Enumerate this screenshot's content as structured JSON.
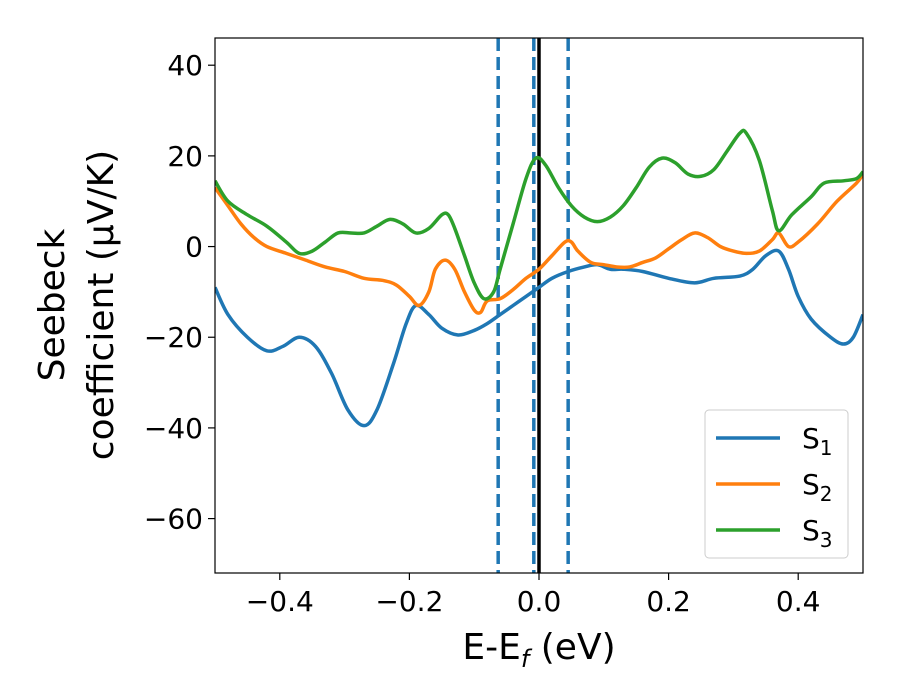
{
  "chart_data": {
    "type": "line",
    "xlabel": "E-E",
    "xlabel_sub": "f",
    "xlabel_suffix": " (eV)",
    "ylabel_line1": "Seebeck",
    "ylabel_line2": "coefficient  (μV/K)",
    "xlim": [
      -0.5,
      0.5
    ],
    "ylim": [
      -72,
      46
    ],
    "xticks": [
      -0.4,
      -0.2,
      0.0,
      0.2,
      0.4
    ],
    "xtick_labels": [
      "−0.4",
      "−0.2",
      "0.0",
      "0.2",
      "0.4"
    ],
    "yticks": [
      40,
      20,
      0,
      -20,
      -40,
      -60
    ],
    "ytick_labels": [
      "40",
      "20",
      "0",
      "−20",
      "−40",
      "−60"
    ],
    "grid": false,
    "legend_position": "bottom-right",
    "vlines_dashed": [
      -0.063,
      -0.008,
      0.045
    ],
    "vline_solid": 0.0,
    "colors": {
      "dashed": "#1f77b4",
      "solid": "#000000"
    },
    "series": [
      {
        "name": "S",
        "sub": "1",
        "color": "#1f77b4",
        "points": [
          [
            -0.5,
            -9
          ],
          [
            -0.48,
            -15
          ],
          [
            -0.45,
            -20
          ],
          [
            -0.42,
            -23
          ],
          [
            -0.395,
            -22
          ],
          [
            -0.37,
            -20
          ],
          [
            -0.345,
            -22
          ],
          [
            -0.32,
            -28
          ],
          [
            -0.295,
            -36
          ],
          [
            -0.27,
            -39.5
          ],
          [
            -0.25,
            -36
          ],
          [
            -0.225,
            -26
          ],
          [
            -0.205,
            -17
          ],
          [
            -0.19,
            -13
          ],
          [
            -0.17,
            -15
          ],
          [
            -0.15,
            -18
          ],
          [
            -0.125,
            -19.5
          ],
          [
            -0.1,
            -18.5
          ],
          [
            -0.08,
            -17
          ],
          [
            -0.06,
            -15
          ],
          [
            -0.04,
            -13
          ],
          [
            -0.02,
            -11
          ],
          [
            0.0,
            -9
          ],
          [
            0.02,
            -7
          ],
          [
            0.045,
            -5.5
          ],
          [
            0.07,
            -4.5
          ],
          [
            0.09,
            -4
          ],
          [
            0.11,
            -5
          ],
          [
            0.13,
            -5
          ],
          [
            0.16,
            -5.5
          ],
          [
            0.2,
            -7
          ],
          [
            0.24,
            -8
          ],
          [
            0.27,
            -7
          ],
          [
            0.31,
            -6.5
          ],
          [
            0.33,
            -5
          ],
          [
            0.35,
            -2
          ],
          [
            0.37,
            -1
          ],
          [
            0.385,
            -5
          ],
          [
            0.4,
            -11
          ],
          [
            0.42,
            -16
          ],
          [
            0.45,
            -20
          ],
          [
            0.47,
            -21.5
          ],
          [
            0.485,
            -20
          ],
          [
            0.5,
            -15
          ]
        ]
      },
      {
        "name": "S",
        "sub": "2",
        "color": "#ff7f0e",
        "points": [
          [
            -0.5,
            13
          ],
          [
            -0.48,
            9
          ],
          [
            -0.46,
            5
          ],
          [
            -0.44,
            2
          ],
          [
            -0.42,
            0
          ],
          [
            -0.39,
            -1.5
          ],
          [
            -0.36,
            -3
          ],
          [
            -0.33,
            -4.5
          ],
          [
            -0.3,
            -5.5
          ],
          [
            -0.27,
            -7
          ],
          [
            -0.24,
            -7.5
          ],
          [
            -0.22,
            -8.5
          ],
          [
            -0.2,
            -11
          ],
          [
            -0.185,
            -13
          ],
          [
            -0.17,
            -10
          ],
          [
            -0.16,
            -5
          ],
          [
            -0.145,
            -3
          ],
          [
            -0.13,
            -5
          ],
          [
            -0.115,
            -10
          ],
          [
            -0.1,
            -14
          ],
          [
            -0.09,
            -14.5
          ],
          [
            -0.08,
            -12
          ],
          [
            -0.06,
            -11.5
          ],
          [
            -0.04,
            -9.5
          ],
          [
            -0.02,
            -7
          ],
          [
            0.0,
            -5
          ],
          [
            0.02,
            -2
          ],
          [
            0.04,
            1
          ],
          [
            0.05,
            1
          ],
          [
            0.06,
            -1
          ],
          [
            0.08,
            -3.5
          ],
          [
            0.1,
            -4
          ],
          [
            0.12,
            -4.5
          ],
          [
            0.14,
            -4.5
          ],
          [
            0.16,
            -3.5
          ],
          [
            0.18,
            -2.5
          ],
          [
            0.2,
            -0.5
          ],
          [
            0.22,
            1.5
          ],
          [
            0.24,
            3
          ],
          [
            0.26,
            2
          ],
          [
            0.28,
            0
          ],
          [
            0.3,
            -1
          ],
          [
            0.32,
            -1.5
          ],
          [
            0.34,
            -1
          ],
          [
            0.36,
            1.5
          ],
          [
            0.37,
            3
          ],
          [
            0.385,
            0
          ],
          [
            0.4,
            1
          ],
          [
            0.43,
            5
          ],
          [
            0.46,
            10
          ],
          [
            0.49,
            14
          ],
          [
            0.5,
            16
          ]
        ]
      },
      {
        "name": "S",
        "sub": "3",
        "color": "#2ca02c",
        "points": [
          [
            -0.5,
            14.5
          ],
          [
            -0.48,
            10
          ],
          [
            -0.45,
            7
          ],
          [
            -0.42,
            4.5
          ],
          [
            -0.39,
            1
          ],
          [
            -0.37,
            -1.5
          ],
          [
            -0.35,
            -1
          ],
          [
            -0.33,
            1
          ],
          [
            -0.31,
            3
          ],
          [
            -0.29,
            3
          ],
          [
            -0.27,
            3
          ],
          [
            -0.25,
            4.5
          ],
          [
            -0.23,
            6
          ],
          [
            -0.21,
            5
          ],
          [
            -0.19,
            3
          ],
          [
            -0.17,
            4
          ],
          [
            -0.15,
            7
          ],
          [
            -0.14,
            7
          ],
          [
            -0.13,
            4
          ],
          [
            -0.115,
            -2
          ],
          [
            -0.1,
            -8
          ],
          [
            -0.085,
            -11.5
          ],
          [
            -0.07,
            -10
          ],
          [
            -0.06,
            -5
          ],
          [
            -0.04,
            5
          ],
          [
            -0.02,
            15
          ],
          [
            -0.005,
            19.5
          ],
          [
            0.01,
            18
          ],
          [
            0.03,
            13
          ],
          [
            0.05,
            9
          ],
          [
            0.07,
            6.5
          ],
          [
            0.09,
            5.5
          ],
          [
            0.11,
            6.5
          ],
          [
            0.13,
            9
          ],
          [
            0.15,
            13
          ],
          [
            0.17,
            17.5
          ],
          [
            0.19,
            19.5
          ],
          [
            0.21,
            18.5
          ],
          [
            0.23,
            16
          ],
          [
            0.25,
            15.5
          ],
          [
            0.27,
            17
          ],
          [
            0.29,
            21
          ],
          [
            0.31,
            25
          ],
          [
            0.32,
            25
          ],
          [
            0.34,
            19
          ],
          [
            0.36,
            8
          ],
          [
            0.37,
            3.5
          ],
          [
            0.39,
            7
          ],
          [
            0.42,
            11
          ],
          [
            0.44,
            14
          ],
          [
            0.47,
            14.5
          ],
          [
            0.49,
            15
          ],
          [
            0.5,
            16.5
          ]
        ]
      }
    ]
  }
}
